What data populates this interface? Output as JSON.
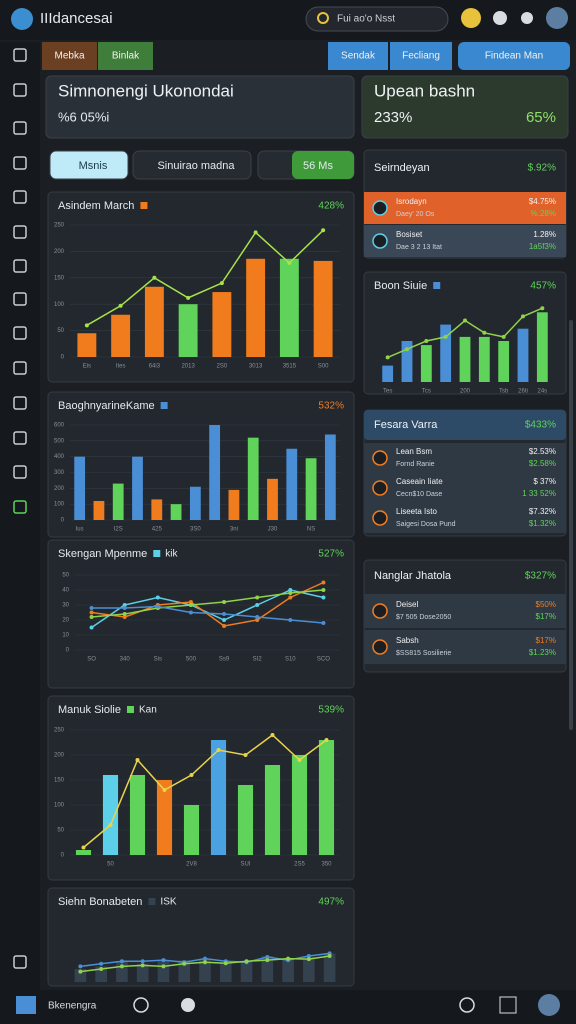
{
  "header": {
    "title": "IIIdancesai",
    "search": "Fui ao'o Nsst"
  },
  "tabs": {
    "left": [
      "Mebka",
      "Binlak"
    ],
    "right": [
      "Sendak",
      "Fecliang",
      "Findean Man"
    ]
  },
  "summary": [
    {
      "title": "Simnonengi Ukonondai",
      "value": "%6 05%i"
    },
    {
      "title": "Upean bashn",
      "value": "233%",
      "change": "65%"
    }
  ],
  "filters": [
    "Msnis",
    "Sinuirao madna",
    "56 Ms"
  ],
  "charts": [
    {
      "title": "Asindem March",
      "change": "428%",
      "change_color": "#5fd35a",
      "ylim": [
        0,
        250
      ],
      "yticks": [
        0,
        50,
        100,
        150,
        200,
        250
      ],
      "categories": [
        "Eis",
        "Ites",
        "64i3",
        "2013",
        "2S0",
        "3013",
        "3515",
        "S00"
      ],
      "bars": {
        "values": [
          45,
          80,
          133,
          100,
          123,
          186,
          186,
          182
        ],
        "colors": [
          "#f07c1e",
          "#f07c1e",
          "#f07c1e",
          "#5fd35a",
          "#f07c1e",
          "#f07c1e",
          "#5fd35a",
          "#f07c1e"
        ]
      },
      "lines": [
        {
          "color": "#a6e34a",
          "values": [
            60,
            97,
            150,
            112,
            140,
            236,
            178,
            240
          ]
        }
      ]
    },
    {
      "title": "BaoghnyarineKame",
      "change": "532%",
      "change_color": "#f07c1e",
      "ylim": [
        0,
        600
      ],
      "yticks": [
        0,
        100,
        200,
        300,
        400,
        500,
        600
      ],
      "categories": [
        "Ius",
        null,
        "I2S",
        null,
        "425",
        null,
        "3S0",
        null,
        "3ni",
        null,
        "J30",
        null,
        "NS",
        null
      ],
      "bars": {
        "values": [
          400,
          120,
          230,
          400,
          130,
          100,
          210,
          600,
          190,
          520,
          260,
          450,
          390,
          540
        ],
        "colors": [
          "#4a8fd6",
          "#f07c1e",
          "#5fd35a",
          "#4a8fd6",
          "#f07c1e",
          "#5fd35a",
          "#4a8fd6",
          "#4a8fd6",
          "#f07c1e",
          "#5fd35a",
          "#f07c1e",
          "#4a8fd6",
          "#5fd35a",
          "#4a8fd6"
        ]
      },
      "lines": []
    },
    {
      "title": "Skengan Mpenme",
      "tag": "kik",
      "change": "527%",
      "change_color": "#5fd35a",
      "ylim": [
        0,
        50
      ],
      "yticks": [
        0,
        10,
        20,
        30,
        40,
        50
      ],
      "categories": [
        "SO",
        "340",
        "Sis",
        "500",
        "Ss9",
        "SI2",
        "S10",
        "SCO"
      ],
      "bars": {
        "values": [],
        "colors": []
      },
      "lines": [
        {
          "color": "#5bd0e8",
          "values": [
            15,
            30,
            35,
            30,
            20,
            30,
            40,
            35
          ]
        },
        {
          "color": "#f07c1e",
          "values": [
            25,
            22,
            30,
            32,
            16,
            20,
            35,
            45
          ]
        },
        {
          "color": "#8fd34a",
          "values": [
            22,
            24,
            28,
            30,
            32,
            35,
            38,
            40
          ]
        },
        {
          "color": "#4a8fd6",
          "values": [
            28,
            28,
            29,
            25,
            24,
            22,
            20,
            18
          ]
        }
      ]
    },
    {
      "title": "Manuk Siolie",
      "tag": "Kan",
      "change": "539%",
      "change_color": "#5fd35a",
      "ylim": [
        0,
        250
      ],
      "yticks": [
        0,
        50,
        100,
        150,
        200,
        250
      ],
      "categories": [
        null,
        "50",
        null,
        null,
        "2V8",
        null,
        "SUI",
        null,
        "2S5",
        "350"
      ],
      "bars": {
        "values": [
          10,
          160,
          160,
          150,
          100,
          230,
          140,
          180,
          200,
          230
        ],
        "colors": [
          "#5fd35a",
          "#5bd0e8",
          "#5fd35a",
          "#f07c1e",
          "#5fd35a",
          "#4aa3e0",
          "#5fd35a",
          "#5fd35a",
          "#5fd35a",
          "#5fd35a"
        ]
      },
      "lines": [
        {
          "color": "#e8d44a",
          "values": [
            15,
            60,
            190,
            130,
            160,
            210,
            200,
            240,
            190,
            230
          ]
        }
      ]
    },
    {
      "title": "Siehn Bonabeten",
      "tag": "ISK",
      "change": "497%",
      "change_color": "#5fd35a",
      "ylim": [
        0,
        100
      ],
      "categories": [
        null,
        null,
        null,
        null,
        null,
        null,
        null,
        null,
        null,
        null,
        null,
        null,
        null
      ],
      "bars": {
        "values": [
          25,
          30,
          40,
          35,
          40,
          42,
          45,
          38,
          40,
          50,
          45,
          48,
          55
        ],
        "colors": [
          "#34414f",
          "#34414f",
          "#34414f",
          "#34414f",
          "#34414f",
          "#34414f",
          "#34414f",
          "#34414f",
          "#34414f",
          "#34414f",
          "#34414f",
          "#34414f",
          "#34414f"
        ]
      },
      "lines": [
        {
          "color": "#4a8fd6",
          "values": [
            30,
            35,
            40,
            40,
            42,
            38,
            45,
            40,
            38,
            48,
            42,
            50,
            55
          ]
        },
        {
          "color": "#8fd34a",
          "values": [
            20,
            25,
            30,
            32,
            30,
            35,
            38,
            36,
            40,
            42,
            45,
            44,
            50
          ]
        }
      ]
    },
    {
      "title": "Boon Siuie",
      "change": "457%",
      "change_color": "#5fd35a",
      "ylim": [
        0,
        100
      ],
      "categories": [
        "Tes",
        null,
        "Tcs",
        null,
        "200",
        null,
        "Tsb",
        "26ti",
        "24s"
      ],
      "bars": {
        "values": [
          20,
          50,
          45,
          70,
          55,
          55,
          50,
          65,
          85
        ],
        "colors": [
          "#4a8fd6",
          "#4a8fd6",
          "#5fd35a",
          "#4a8fd6",
          "#5fd35a",
          "#5fd35a",
          "#5fd35a",
          "#4a8fd6",
          "#5fd35a"
        ]
      },
      "lines": [
        {
          "color": "#8fd34a",
          "values": [
            30,
            40,
            50,
            55,
            75,
            60,
            55,
            80,
            90
          ]
        }
      ]
    }
  ],
  "lists": [
    {
      "title": "Seirndeyan",
      "change": "$.92%",
      "rows": [
        {
          "name": "Isrodayn",
          "sub": "Daey' 20 Os",
          "v1": "$4.75%",
          "v2": "%.28%"
        },
        {
          "name": "Bosiset",
          "sub": "Dae 3 2 13 Itat",
          "v1": "1.28%",
          "v2": "1a5f3%"
        }
      ]
    },
    {
      "title": "Fesara Varra",
      "change": "$433%",
      "rows": [
        {
          "name": "Lean Bsm",
          "sub": "Fornd Ranie",
          "v1": "$2.53%",
          "v2": "$2.58%"
        },
        {
          "name": "Caseain Iiate",
          "sub": "Cecn$10 Dase",
          "v1": "$ 37%",
          "v2": "1 33 52%"
        },
        {
          "name": "Liseeta Isto",
          "sub": "Saigesi Dosa Pund",
          "v1": "$7.32%",
          "v2": "$1.32%"
        }
      ]
    },
    {
      "title": "Nanglar Jhatola",
      "change": "$327%",
      "rows": [
        {
          "name": "Deisel",
          "sub": "$7 505 Dose2050",
          "v1": "$50%",
          "v2": "$17%"
        },
        {
          "name": "Sabsh",
          "sub": "$SS815 Sosilierie",
          "v1": "$17%",
          "v2": "$1.23%"
        }
      ]
    }
  ],
  "footer": {
    "label": "Bkenengra"
  }
}
